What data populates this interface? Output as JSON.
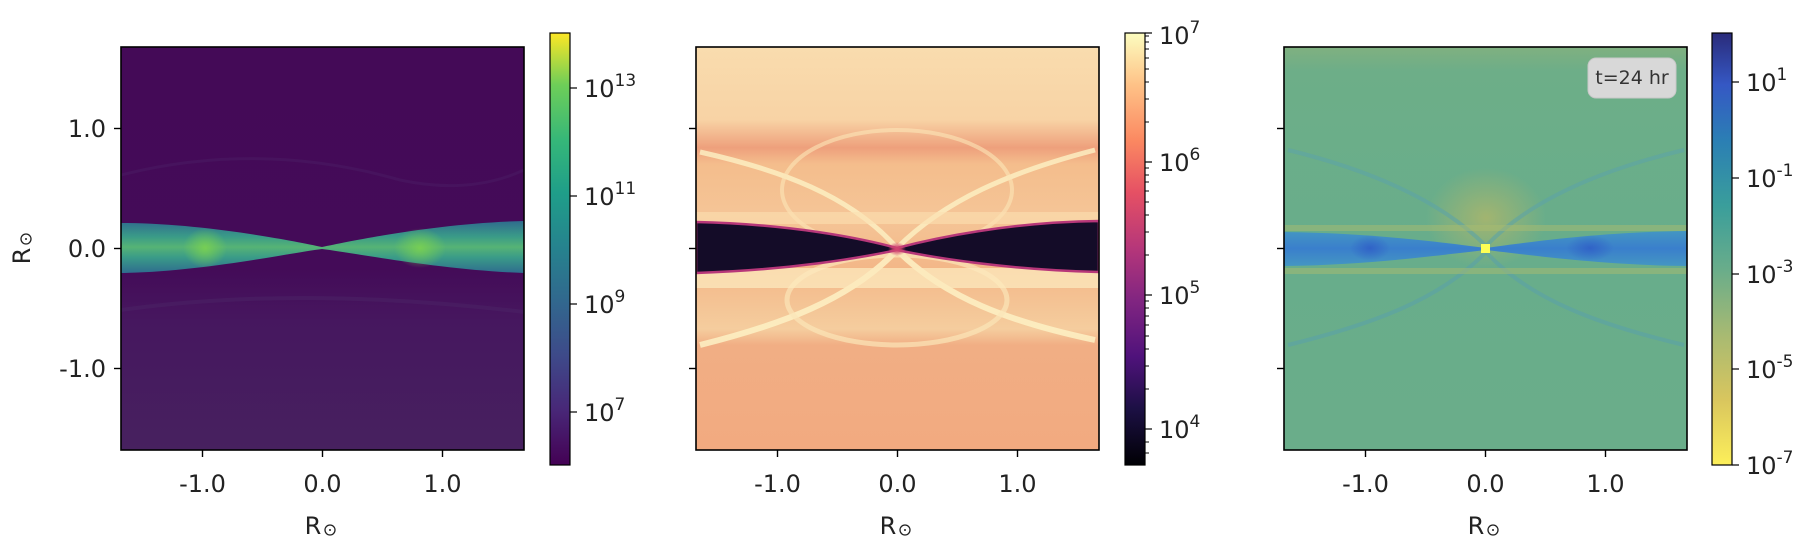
{
  "chart_data": [
    {
      "type": "heatmap",
      "xlabel": "R",
      "ylabel": "R",
      "xticks": [
        {
          "value": -1.0,
          "label": "-1.0"
        },
        {
          "value": 0.0,
          "label": "0.0"
        },
        {
          "value": 1.0,
          "label": "1.0"
        }
      ],
      "yticks": [
        {
          "value": 1.0,
          "label": "1.0"
        },
        {
          "value": 0.0,
          "label": "0.0"
        },
        {
          "value": -1.0,
          "label": "-1.0"
        }
      ],
      "xlim": [
        -1.67,
        1.67
      ],
      "ylim": [
        -1.67,
        1.67
      ],
      "colorbar": {
        "scale": "log",
        "range": [
          1000000.0,
          100000000000000.0
        ],
        "colormap": "viridis",
        "ticks": [
          {
            "value": 10000000.0,
            "base": "10",
            "exp": "7"
          },
          {
            "value": 1000000000.0,
            "base": "10",
            "exp": "9"
          },
          {
            "value": 100000000000.0,
            "base": "10",
            "exp": "11"
          },
          {
            "value": 10000000000000.0,
            "base": "10",
            "exp": "13"
          }
        ]
      },
      "colors": {
        "background": "#440a57",
        "lower_background": "#45175f",
        "disk_edge": "#2f6c8e",
        "disk_inner": "#45a287",
        "disk_bright": "#7ad151"
      }
    },
    {
      "type": "heatmap",
      "xlabel": "R",
      "xticks": [
        {
          "value": -1.0,
          "label": "-1.0"
        },
        {
          "value": 0.0,
          "label": "0.0"
        },
        {
          "value": 1.0,
          "label": "1.0"
        }
      ],
      "yticks": [
        {
          "value": 1.0,
          "label": ""
        },
        {
          "value": 0.0,
          "label": ""
        },
        {
          "value": -1.0,
          "label": ""
        }
      ],
      "xlim": [
        -1.67,
        1.67
      ],
      "ylim": [
        -1.67,
        1.67
      ],
      "colorbar": {
        "scale": "log",
        "range": [
          6000.0,
          10000000.0
        ],
        "colormap": "magma",
        "ticks": [
          {
            "value": 10000.0,
            "base": "10",
            "exp": "4"
          },
          {
            "value": 100000.0,
            "base": "10",
            "exp": "5"
          },
          {
            "value": 1000000.0,
            "base": "10",
            "exp": "6"
          },
          {
            "value": 10000000.0,
            "base": "10",
            "exp": "7"
          }
        ]
      },
      "colors": {
        "background": "#f2b082",
        "top_band": "#f9dcae",
        "stripe": "#eea07c",
        "bright_arc": "#fdf1c4",
        "disk": "#140c28",
        "disk_edge": "#b73779"
      }
    },
    {
      "type": "heatmap",
      "xlabel": "R",
      "xticks": [
        {
          "value": -1.0,
          "label": "-1.0"
        },
        {
          "value": 0.0,
          "label": "0.0"
        },
        {
          "value": 1.0,
          "label": "1.0"
        }
      ],
      "yticks": [
        {
          "value": 1.0,
          "label": ""
        },
        {
          "value": 0.0,
          "label": ""
        },
        {
          "value": -1.0,
          "label": ""
        }
      ],
      "xlim": [
        -1.67,
        1.67
      ],
      "ylim": [
        -1.67,
        1.67
      ],
      "annotation": "t=24 hr",
      "colorbar": {
        "scale": "log",
        "range": [
          1e-07,
          100.0
        ],
        "colormap": "reversed-haline",
        "ticks": [
          {
            "value": 10.0,
            "base": "10",
            "exp": "1"
          },
          {
            "value": 0.1,
            "base": "10",
            "exp": "-1"
          },
          {
            "value": 0.001,
            "base": "10",
            "exp": "-3"
          },
          {
            "value": 1e-05,
            "base": "10",
            "exp": "-5"
          },
          {
            "value": 1e-07,
            "base": "10",
            "exp": "-7"
          }
        ]
      },
      "colors": {
        "background": "#6aad8a",
        "disk": "#3d87cc",
        "disk_core": "#2f62c4",
        "center": "#ffff55"
      }
    }
  ]
}
